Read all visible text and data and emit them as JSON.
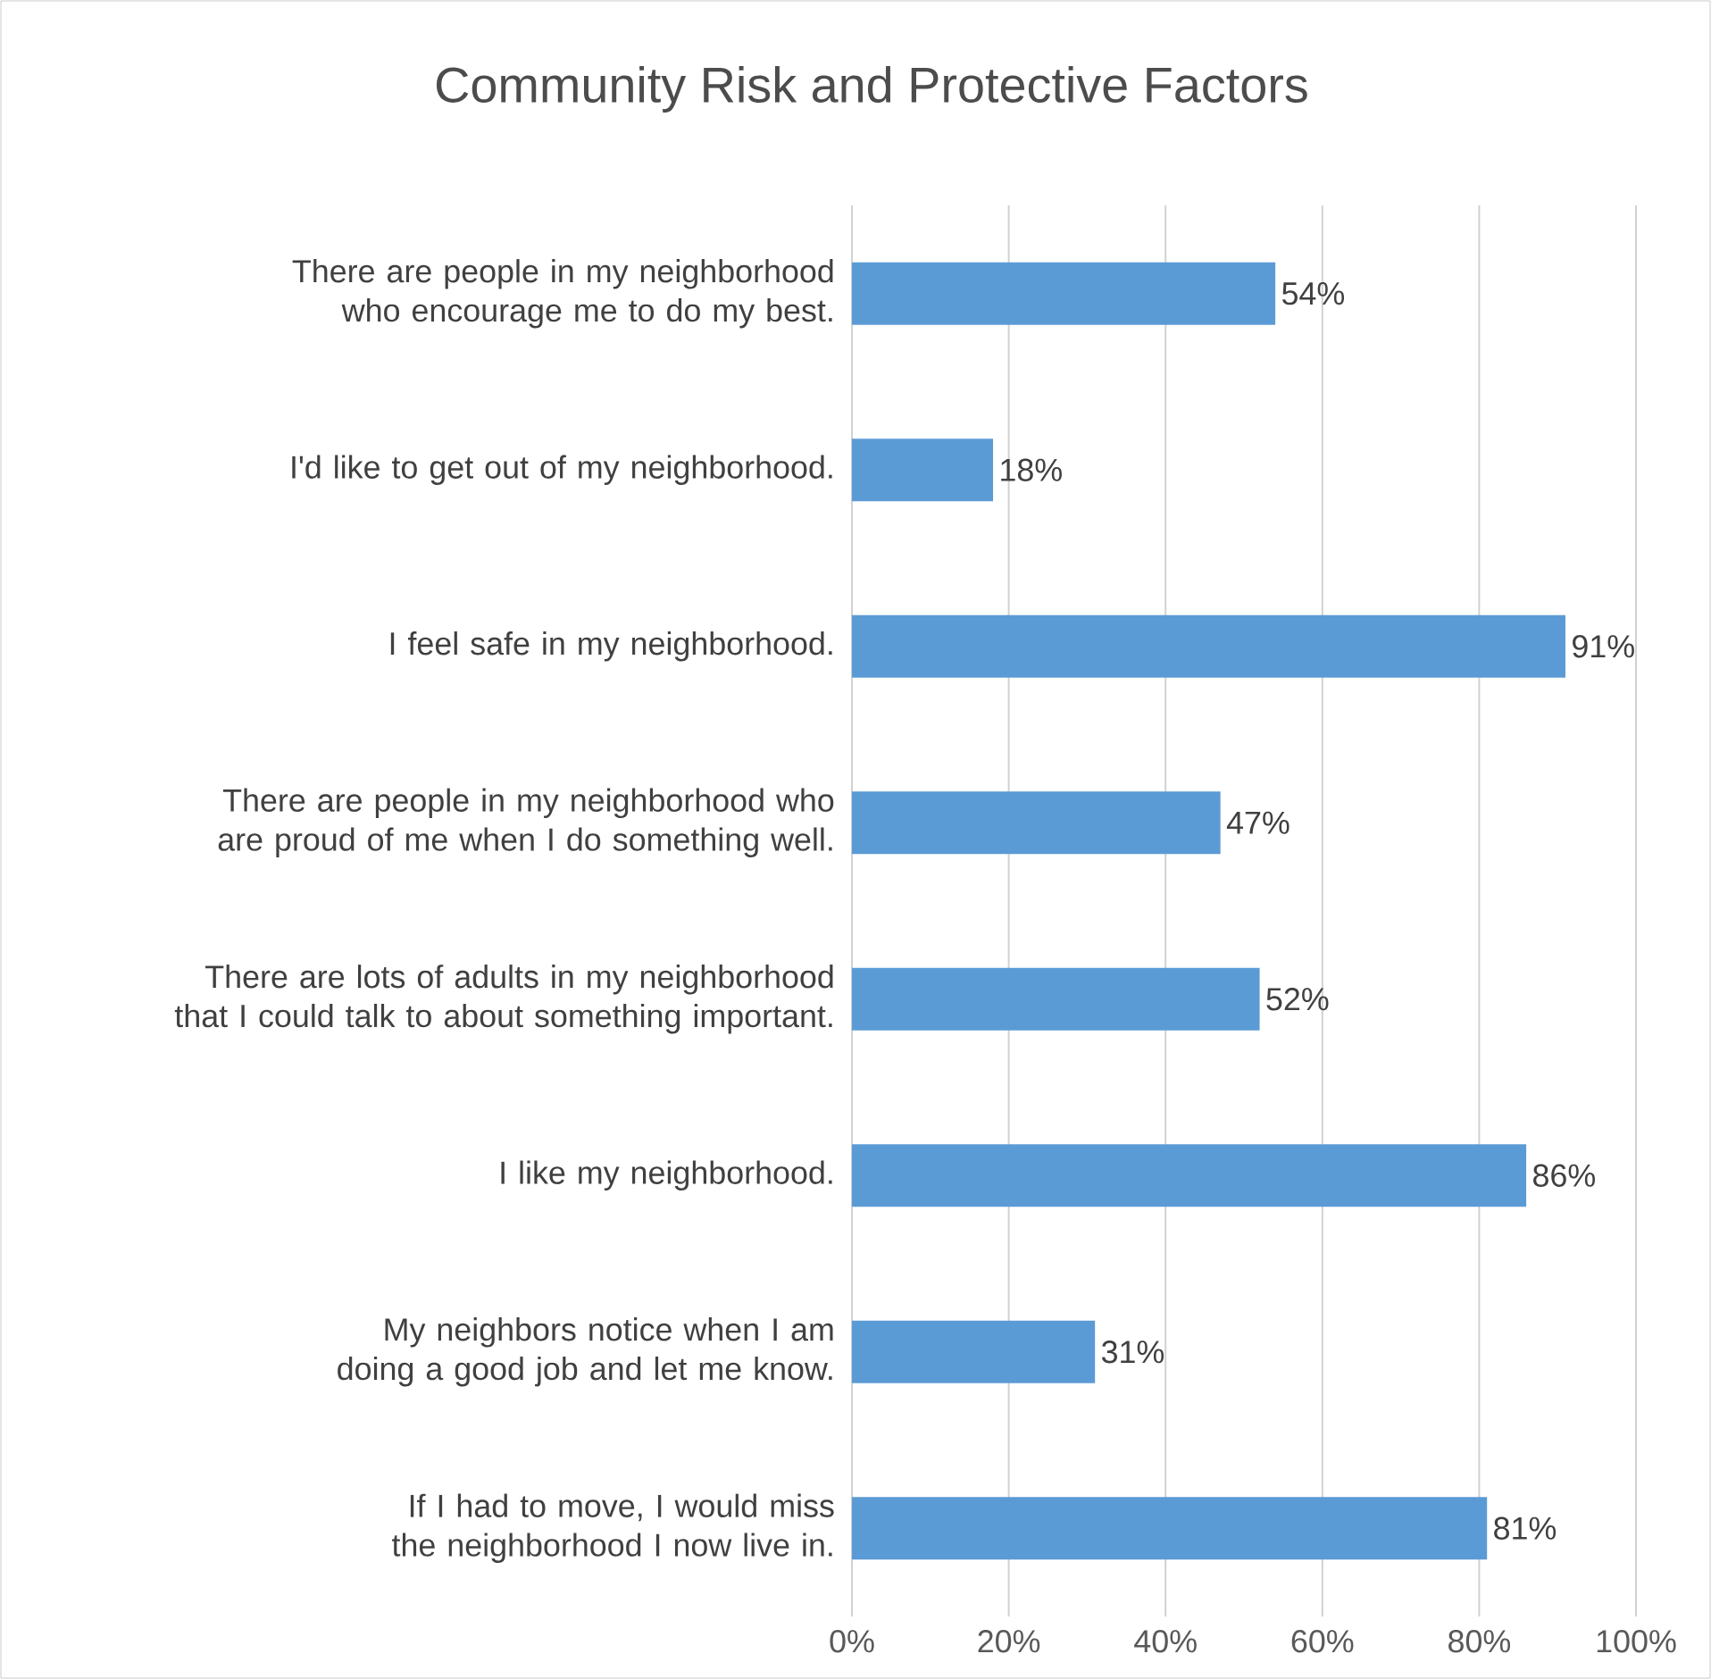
{
  "chart_data": {
    "type": "bar",
    "orientation": "horizontal",
    "title": "Community Risk and Protective Factors",
    "categories": [
      "There are people in my neighborhood who encourage me to do my best.",
      "I'd like to get out of my neighborhood.",
      "I feel safe in my neighborhood.",
      "There are people in my neighborhood who are proud of me when I do something well.",
      "There are lots of adults in my neighborhood that I could talk to about something important.",
      "I like my neighborhood.",
      "My neighbors notice when I am doing a good job and let me know.",
      "If I had to move, I would miss the neighborhood I now live in."
    ],
    "values": [
      54,
      18,
      91,
      47,
      52,
      86,
      31,
      81
    ],
    "value_labels": [
      "54%",
      "18%",
      "91%",
      "47%",
      "52%",
      "86%",
      "31%",
      "81%"
    ],
    "color": "#5b9bd5",
    "xlim": [
      0,
      100
    ],
    "xticks": [
      {
        "value": 0,
        "label": "0%"
      },
      {
        "value": 20,
        "label": "20%"
      },
      {
        "value": 40,
        "label": "40%"
      },
      {
        "value": 60,
        "label": "60%"
      },
      {
        "value": 80,
        "label": "80%"
      },
      {
        "value": 100,
        "label": "100%"
      }
    ],
    "grid": "x"
  }
}
